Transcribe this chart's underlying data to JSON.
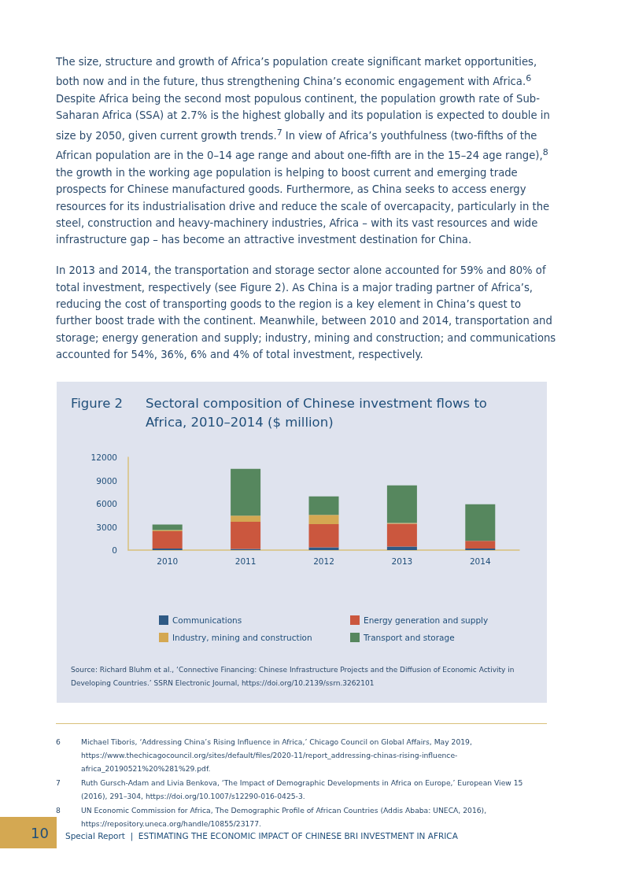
{
  "chart_data": {
    "type": "bar",
    "title": "Sectoral composition of Chinese investment flows to Africa, 2010–2014 ($ million)",
    "categories": [
      "2010",
      "2011",
      "2012",
      "2013",
      "2014"
    ],
    "stacked": true,
    "series": [
      {
        "name": "Communications",
        "color": "#2f5a85",
        "values": [
          200,
          150,
          350,
          450,
          200
        ]
      },
      {
        "name": "Energy generation and supply",
        "color": "#cb573e",
        "values": [
          2250,
          3500,
          3000,
          2950,
          1000
        ]
      },
      {
        "name": "Industry, mining and construction",
        "color": "#d4a852",
        "values": [
          150,
          800,
          1200,
          120,
          0
        ]
      },
      {
        "name": "Transport and storage",
        "color": "#56875e",
        "values": [
          700,
          6050,
          2400,
          4850,
          4720
        ]
      }
    ],
    "ylim": [
      0,
      12000
    ],
    "yticks": [
      0,
      3000,
      6000,
      9000,
      12000
    ],
    "grid": false,
    "legend": "bottom",
    "annotations": [
      "The size, structure and growth of Africa’s population create significant market opportunities, both now and in the future, thus strengthening China’s economic engagement with Africa.$^{6}$ Despite Africa being the second most populous continent, the population growth rate of Sub-Saharan Africa (SSA) at 2.7% is the highest globally and its population is expected to double in size by 2050, given current growth trends.$^{7}$ In view of Africa’s youthfulness (two-fifths of the African population are in the 0–14 age range and about one-fifth are in the 15–24 age range),$^{8}$ the growth in the working age population is helping to boost current and emerging trade prospects for Chinese manufactured goods. Furthermore, as China seeks to access energy resources for its industrialisation drive and reduce the scale of overcapacity, particularly in the steel, construction and heavy-machinery industries, Africa – with its vast resources and wide infrastructure gap – has become an attractive investment destination for China.",
      "In 2013 and 2014, the transportation and storage sector alone accounted for 59% and 80% of total investment, respectively (see Figure 2). As China is a major trading partner of Africa’s, reducing the cost of transporting goods to the region is a key element in China’s quest to further boost trade with the continent. Meanwhile, between 2010 and 2014, transportation and storage; energy generation and supply; industry, mining and construction; and communications accounted for 54%, 36%, 6% and 4% of total investment, respectively.",
      "Figure 2",
      "Source: Richard Bluhm et al., ‘Connective Financing: Chinese Infrastructure Projects and the Diffusion of Economic Activity in Developing Countries.’ SSRN Electronic Journal, https://doi.org/10.2139/ssrn.3262101",
      "6",
      "Michael Tiboris, ‘Addressing China’s Rising Influence in Africa,’ Chicago Council on Global Affairs, May 2019, https://www.thechicagocouncil.org/sites/default/files/2020-11/report_addressing-chinas-rising-influence-africa_20190521%20%281%29.pdf.",
      "7",
      "Ruth Gursch-Adam and Livia Benkova, ‘The Impact of Demographic Developments in Africa on Europe,’ European View 15 (2016), 291–304, https://doi.org/10.1007/s12290-016-0425-3.",
      "8",
      "UN Economic Commission for Africa, The Demographic Profile of African Countries (Addis Ababa: UNECA, 2016), https://repository.uneca.org/handle/10855/23177.",
      "10",
      "Special Report  |  ESTIMATING THE ECONOMIC IMPACT OF CHINESE BRI INVESTMENT IN AFRICA"
    ]
  }
}
